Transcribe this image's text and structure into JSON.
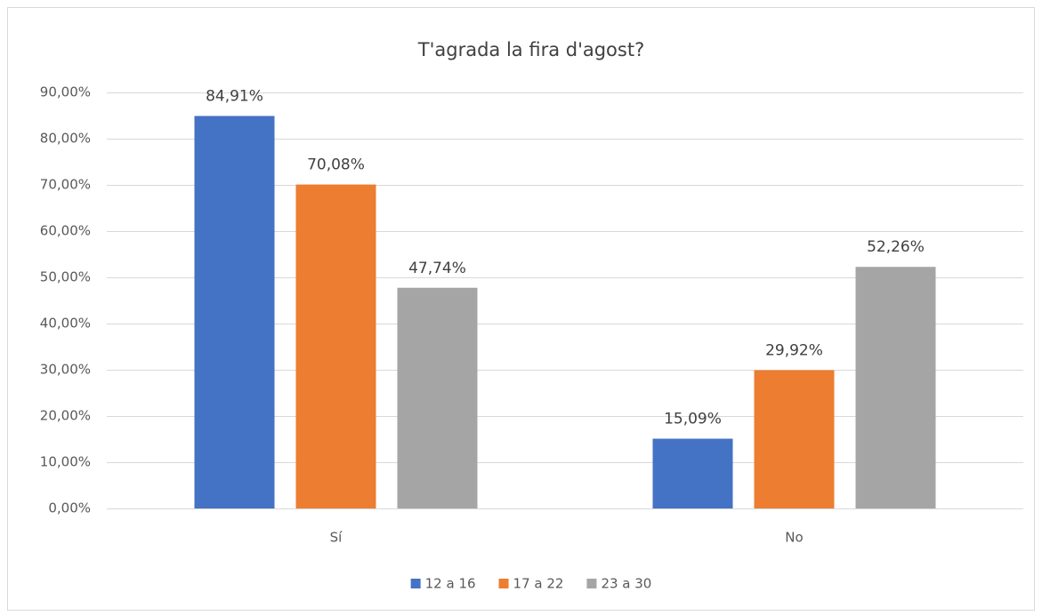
{
  "chart_data": {
    "type": "bar",
    "title": "T'agrada la fira d'agost?",
    "categories": [
      "Sí",
      "No"
    ],
    "series": [
      {
        "name": "12 a 16",
        "color": "#4472c4",
        "values": [
          84.91,
          15.09
        ],
        "value_labels": [
          "84,91%",
          "15,09%"
        ]
      },
      {
        "name": "17 a 22",
        "color": "#ed7d31",
        "values": [
          70.08,
          29.92
        ],
        "value_labels": [
          "70,08%",
          "29,92%"
        ]
      },
      {
        "name": "23 a 30",
        "color": "#a5a5a5",
        "values": [
          47.74,
          52.26
        ],
        "value_labels": [
          "47,74%",
          "52,26%"
        ]
      }
    ],
    "ylim": [
      0,
      90
    ],
    "yticks": [
      {
        "value": 0,
        "label": "0,00%"
      },
      {
        "value": 10,
        "label": "10,00%"
      },
      {
        "value": 20,
        "label": "20,00%"
      },
      {
        "value": 30,
        "label": "30,00%"
      },
      {
        "value": 40,
        "label": "40,00%"
      },
      {
        "value": 50,
        "label": "50,00%"
      },
      {
        "value": 60,
        "label": "60,00%"
      },
      {
        "value": 70,
        "label": "70,00%"
      },
      {
        "value": 80,
        "label": "80,00%"
      },
      {
        "value": 90,
        "label": "90,00%"
      }
    ],
    "grid": true,
    "legend": "bottom"
  }
}
